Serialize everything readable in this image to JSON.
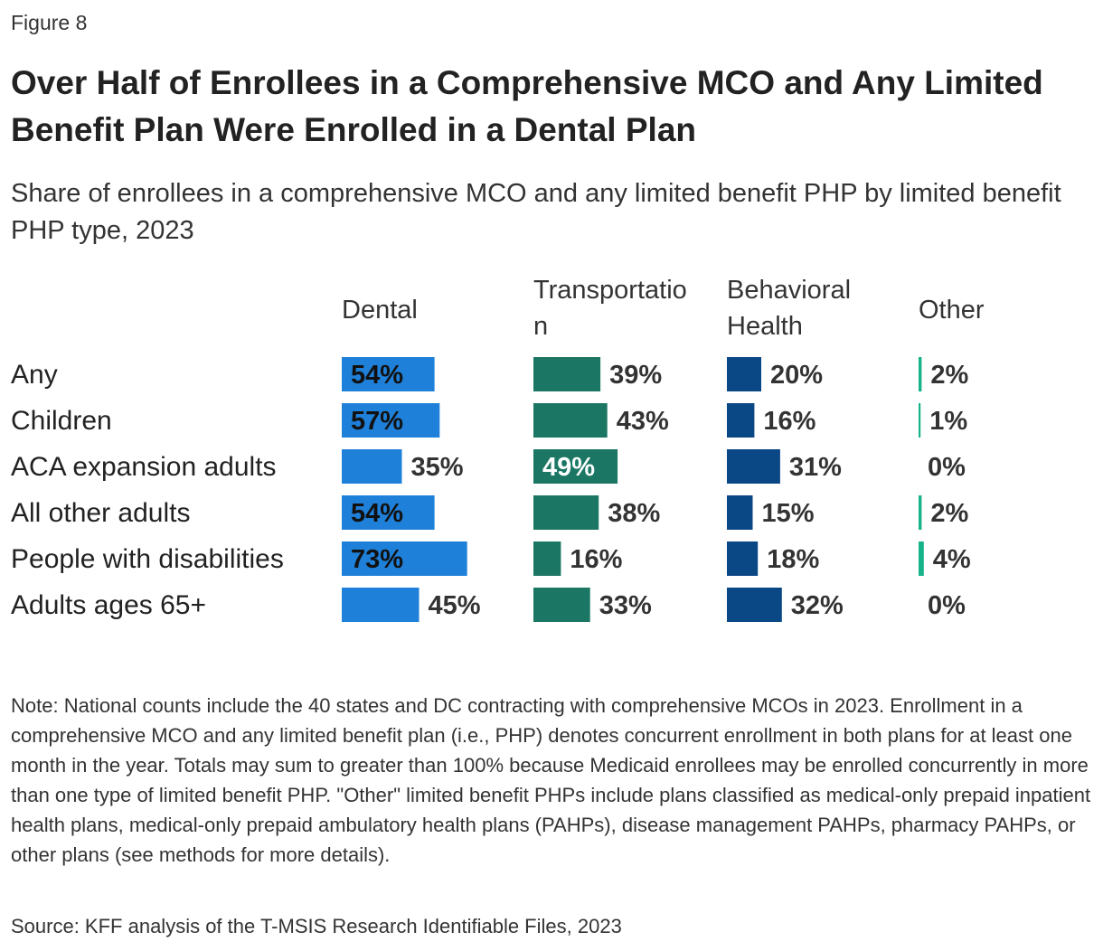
{
  "figure_label": "Figure 8",
  "chart_data": {
    "type": "bar",
    "title": "Over Half of Enrollees in a Comprehensive MCO and Any Limited Benefit Plan Were Enrolled in a Dental Plan",
    "subtitle": "Share of enrollees in a comprehensive MCO and any limited benefit PHP by limited benefit PHP type, 2023",
    "categories": [
      "Any",
      "Children",
      "ACA expansion adults",
      "All other adults",
      "People with disabilities",
      "Adults ages 65+"
    ],
    "series": [
      {
        "name": "Dental",
        "name_lines": [
          "Dental"
        ],
        "color": "#1f80d9",
        "values": [
          54,
          57,
          35,
          54,
          73,
          45
        ]
      },
      {
        "name": "Transportation",
        "name_lines": [
          "Transportatio",
          "n"
        ],
        "color": "#1b7763",
        "values": [
          39,
          43,
          49,
          38,
          16,
          33
        ]
      },
      {
        "name": "Behavioral Health",
        "name_lines": [
          "Behavioral",
          "Health"
        ],
        "color": "#0a4785",
        "values": [
          20,
          16,
          31,
          15,
          18,
          32
        ]
      },
      {
        "name": "Other",
        "name_lines": [
          "Other"
        ],
        "color": "#17b38a",
        "values": [
          2,
          1,
          0,
          2,
          4,
          0
        ]
      }
    ],
    "value_suffix": "%"
  },
  "note": "Note: National counts include the 40 states and DC contracting with comprehensive MCOs in 2023. Enrollment in a comprehensive MCO and any limited benefit plan (i.e., PHP) denotes concurrent enrollment in both plans for at least one month in the year. Totals may sum to greater than 100% because Medicaid enrollees may be enrolled concurrently in more than one type of limited benefit PHP. \"Other\" limited benefit PHPs include plans classified as medical-only prepaid inpatient health plans, medical-only prepaid ambulatory health plans (PAHPs), disease management PAHPs, pharmacy PAHPs, or other plans (see methods for more details).",
  "source": "Source: KFF analysis of the T-MSIS Research Identifiable Files, 2023"
}
